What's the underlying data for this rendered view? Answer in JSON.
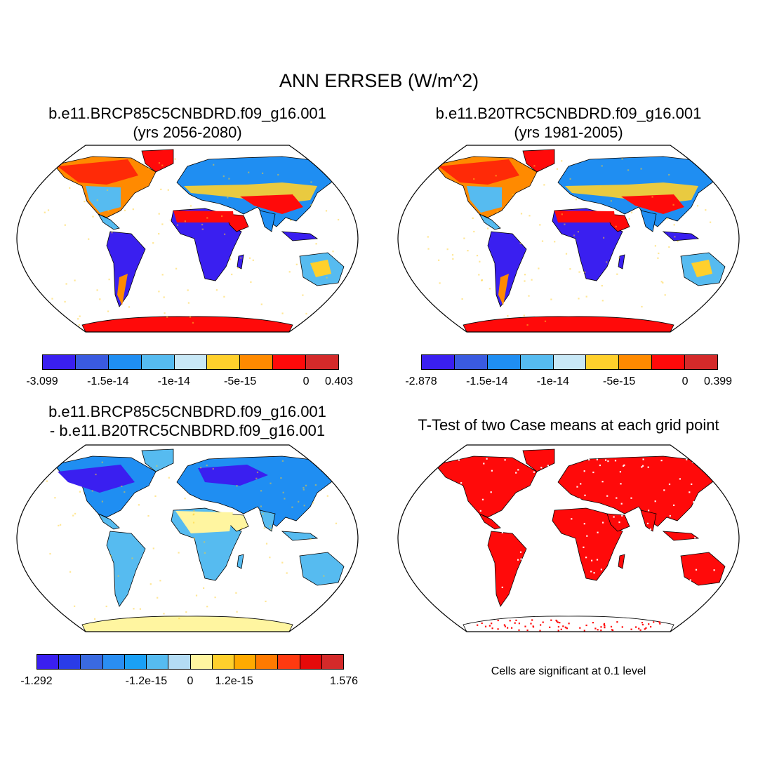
{
  "title": "ANN ERRSEB (W/m^2)",
  "panels": [
    {
      "id": "future",
      "title_line1": "b.e11.BRCP85C5CNBDRD.f09_g16.001",
      "title_line2": "(yrs 2056-2080)",
      "colorbar": {
        "colors": [
          "#3a1ff0",
          "#3a5ae0",
          "#1f8ef2",
          "#56bbf0",
          "#c8e8f6",
          "#ffd02c",
          "#ff8a00",
          "#ff0a0a",
          "#d42a2a"
        ],
        "labels": [
          "-3.099",
          "-1.5e-14",
          "-1e-14",
          "-5e-15",
          "0",
          "0.403"
        ]
      }
    },
    {
      "id": "historical",
      "title_line1": "b.e11.B20TRC5CNBDRD.f09_g16.001",
      "title_line2": "(yrs 1981-2005)",
      "colorbar": {
        "colors": [
          "#3a1ff0",
          "#3a5ae0",
          "#1f8ef2",
          "#56bbf0",
          "#c8e8f6",
          "#ffd02c",
          "#ff8a00",
          "#ff0a0a",
          "#d42a2a"
        ],
        "labels": [
          "-2.878",
          "-1.5e-14",
          "-1e-14",
          "-5e-15",
          "0",
          "0.399"
        ]
      }
    },
    {
      "id": "difference",
      "title_line1": "b.e11.BRCP85C5CNBDRD.f09_g16.001",
      "title_line2": "- b.e11.B20TRC5CNBDRD.f09_g16.001",
      "colorbar": {
        "colors": [
          "#3a1ff0",
          "#2a3ce8",
          "#3a6ae0",
          "#2a8ef2",
          "#1aa0f5",
          "#56bbf0",
          "#b4dcf4",
          "#fff5a0",
          "#ffd02c",
          "#ffaa00",
          "#ff7a00",
          "#ff3a10",
          "#e60a0a",
          "#d42a2a"
        ],
        "labels": [
          "-1.292",
          "-1.2e-15",
          "0",
          "1.2e-15",
          "1.576"
        ]
      }
    },
    {
      "id": "ttest",
      "title_line1": "T-Test of two Case means at each grid point",
      "note": "Cells are significant at 0.1 level"
    }
  ],
  "map_colors": {
    "ocean": "#ffffff",
    "deep_blue": "#3a1ff0",
    "blue": "#1f8ef2",
    "light_blue": "#56bbf0",
    "yellow": "#ffd02c",
    "orange": "#ff8a00",
    "red": "#ff0a0a",
    "pale_yellow": "#fff5a0",
    "outline": "#000000"
  }
}
